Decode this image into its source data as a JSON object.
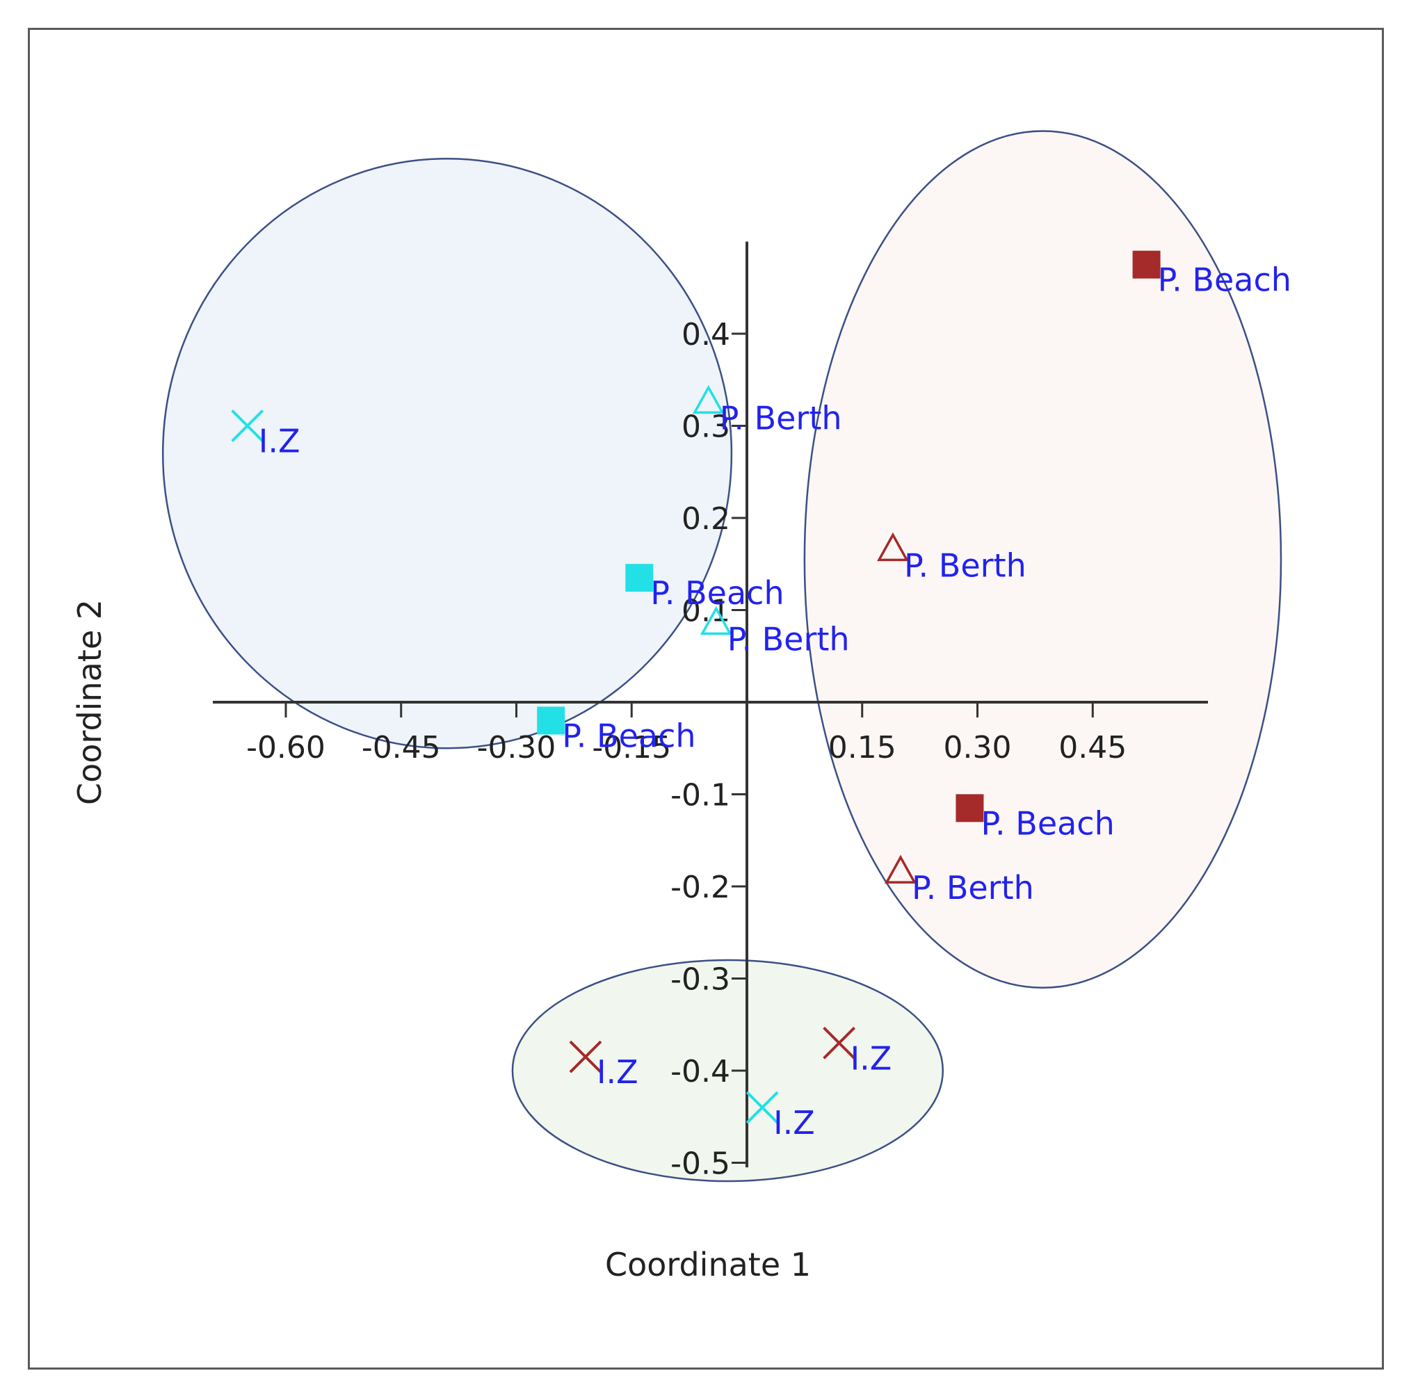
{
  "chart_data": {
    "type": "scatter",
    "xlabel": "Coordinate 1",
    "ylabel": "Coordinate 2",
    "xlim": [
      -0.7,
      0.6
    ],
    "ylim": [
      -0.5,
      0.5
    ],
    "x_ticks": [
      -0.6,
      -0.45,
      -0.3,
      -0.15,
      0.15,
      0.3,
      0.45
    ],
    "x_tick_labels": [
      "-0.60",
      "-0.45",
      "-0.30",
      "-0.15",
      "0.15",
      "0.30",
      "0.45"
    ],
    "y_ticks": [
      0.4,
      0.3,
      0.2,
      0.1,
      -0.1,
      -0.2,
      -0.3,
      -0.4,
      -0.5
    ],
    "y_tick_labels": [
      "0.4",
      "0.3",
      "0.2",
      "0.1",
      "-0.1",
      "-0.2",
      "-0.3",
      "-0.4",
      "-0.5"
    ],
    "grid": false,
    "colors": {
      "cyan": "#22e0e6",
      "darkred": "#a52a2a",
      "label": "#2222ee",
      "axis": "#333333"
    },
    "points": [
      {
        "x": 0.52,
        "y": 0.475,
        "marker": "square",
        "color": "darkred",
        "label": "P. Beach"
      },
      {
        "x": 0.29,
        "y": -0.115,
        "marker": "square",
        "color": "darkred",
        "label": "P. Beach"
      },
      {
        "x": 0.19,
        "y": 0.165,
        "marker": "triangle",
        "color": "darkred",
        "label": "P. Berth"
      },
      {
        "x": 0.2,
        "y": -0.185,
        "marker": "triangle",
        "color": "darkred",
        "label": "P. Berth"
      },
      {
        "x": -0.21,
        "y": -0.385,
        "marker": "cross",
        "color": "darkred",
        "label": "I.Z"
      },
      {
        "x": 0.12,
        "y": -0.37,
        "marker": "cross",
        "color": "darkred",
        "label": "I.Z"
      },
      {
        "x": -0.14,
        "y": 0.135,
        "marker": "square",
        "color": "cyan",
        "label": "P. Beach"
      },
      {
        "x": -0.255,
        "y": -0.02,
        "marker": "square",
        "color": "cyan",
        "label": "P. Beach"
      },
      {
        "x": -0.05,
        "y": 0.325,
        "marker": "triangle",
        "color": "cyan",
        "label": "P. Berth"
      },
      {
        "x": -0.04,
        "y": 0.085,
        "marker": "triangle",
        "color": "cyan",
        "label": "P. Berth"
      },
      {
        "x": -0.65,
        "y": 0.3,
        "marker": "cross",
        "color": "cyan",
        "label": "I.Z"
      },
      {
        "x": 0.02,
        "y": -0.44,
        "marker": "cross",
        "color": "cyan",
        "label": "I.Z"
      }
    ],
    "ellipses": [
      {
        "cx": -0.39,
        "cy": 0.27,
        "rx": 0.37,
        "ry": 0.32,
        "fill": "#eef4f9",
        "stroke": "#3c4f86"
      },
      {
        "cx": 0.385,
        "cy": 0.155,
        "rx": 0.31,
        "ry": 0.465,
        "fill": "#fcf7f5",
        "stroke": "#3c4f86"
      },
      {
        "cx": -0.025,
        "cy": -0.4,
        "rx": 0.28,
        "ry": 0.12,
        "fill": "#f1f7ee",
        "stroke": "#3c4f86"
      }
    ]
  }
}
